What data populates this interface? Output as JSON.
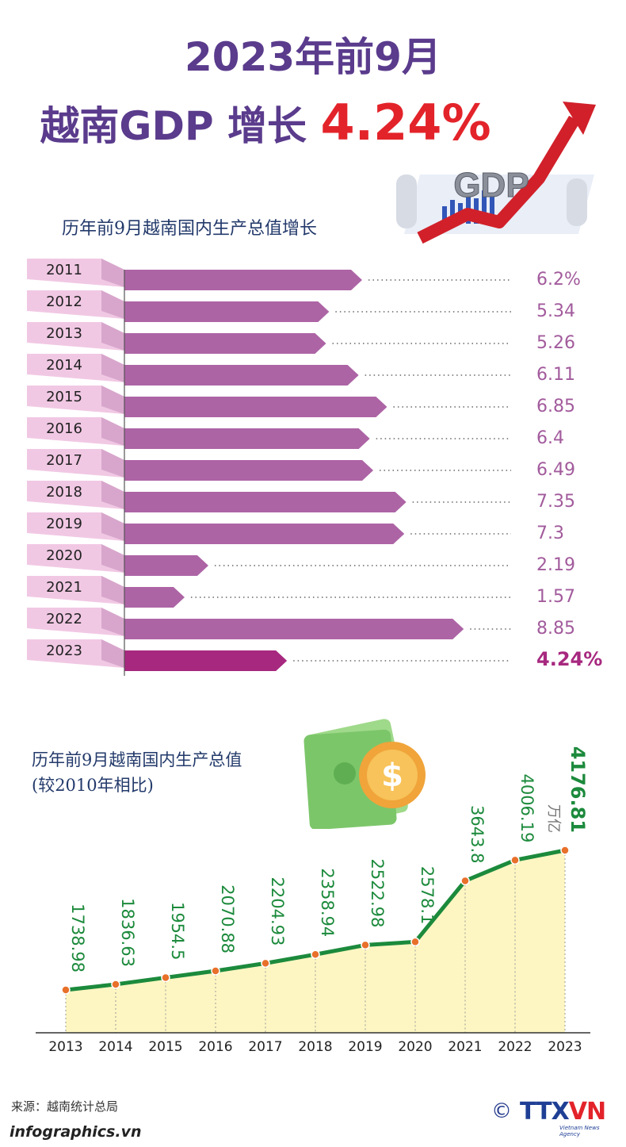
{
  "title": {
    "line1": "2023年前9月",
    "line2_prefix": "越南GDP 增长",
    "line2_highlight": "4.24%"
  },
  "gdp_badge": "GDP",
  "colors": {
    "title": "#5a3b8c",
    "highlight": "#e3232a",
    "bar": "#ad64a5",
    "bar_highlight": "#a7287f",
    "line": "#1c8a3c",
    "point": "#e8702a"
  },
  "chart_data": [
    {
      "type": "bar",
      "orientation": "horizontal",
      "title": "历年前9月越南国内生产总值增长",
      "categories": [
        "2011",
        "2012",
        "2013",
        "2014",
        "2015",
        "2016",
        "2017",
        "2018",
        "2019",
        "2020",
        "2021",
        "2022",
        "2023"
      ],
      "values": [
        6.2,
        5.34,
        5.26,
        6.11,
        6.85,
        6.4,
        6.49,
        7.35,
        7.3,
        2.19,
        1.57,
        8.85,
        4.24
      ],
      "value_labels": [
        "6.2%",
        "5.34",
        "5.26",
        "6.11",
        "6.85",
        "6.4",
        "6.49",
        "7.35",
        "7.3",
        "2.19",
        "1.57",
        "8.85",
        "4.24%"
      ],
      "highlight_index": 12
    },
    {
      "type": "area",
      "title": "历年前9月越南国内生产总值",
      "subtitle": "(较2010年相比)",
      "x": [
        "2013",
        "2014",
        "2015",
        "2016",
        "2017",
        "2018",
        "2019",
        "2020",
        "2021",
        "2022",
        "2023"
      ],
      "values": [
        1738.98,
        1836.63,
        1954.5,
        2070.88,
        2204.93,
        2358.94,
        2522.98,
        2578.1,
        3643.8,
        4006.19,
        4176.81
      ],
      "value_labels": [
        "1738.98",
        "1836.63",
        "1954.5",
        "2070.88",
        "2204.93",
        "2358.94",
        "2522.98",
        "2578.1",
        "3643.8",
        "4006.19",
        "4176.81"
      ],
      "unit": "万亿",
      "highlight_index": 10
    }
  ],
  "footer": {
    "source": "来源：越南统计总局",
    "site": "infographics.vn",
    "logo_symbol": "©",
    "logo_text_a": "TTX",
    "logo_text_b": "VN",
    "logo_sub": "Vietnam News Agency"
  }
}
